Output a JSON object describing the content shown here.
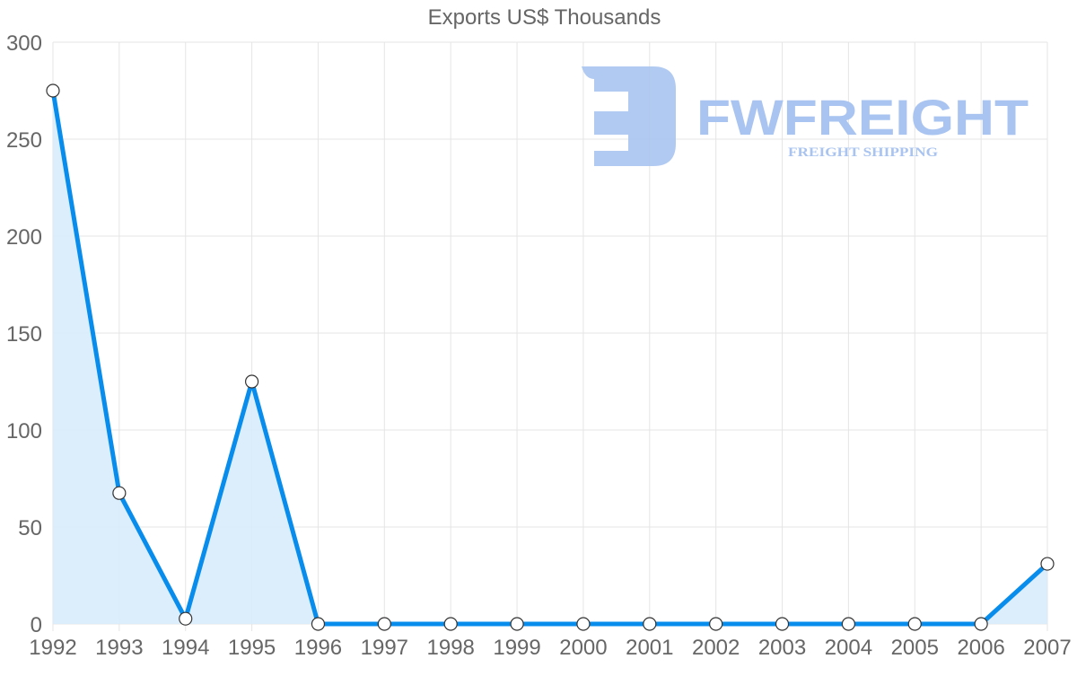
{
  "chart_data": {
    "type": "line",
    "title": "Exports US$ Thousands",
    "xlabel": "",
    "ylabel": "",
    "categories": [
      "1992",
      "1993",
      "1994",
      "1995",
      "1996",
      "1997",
      "1998",
      "1999",
      "2000",
      "2001",
      "2002",
      "2003",
      "2004",
      "2005",
      "2006",
      "2007"
    ],
    "series": [
      {
        "name": "Exports US$ Thousands",
        "values": [
          275,
          67.5,
          2.7,
          125,
          0,
          0,
          0,
          0,
          0,
          0,
          0,
          0,
          0,
          0,
          0,
          31
        ],
        "color": "#098ded",
        "fill": "#d8ecfc",
        "area": true
      }
    ],
    "ylim": [
      0,
      300
    ],
    "yticks": [
      0,
      50,
      100,
      150,
      200,
      250,
      300
    ],
    "grid": true,
    "legend": "none"
  },
  "watermark": {
    "brand": "FWFREIGHT",
    "tagline": "FREIGHT SHIPPING"
  },
  "colors": {
    "line": "#098ded",
    "fill": "#d8ecfc",
    "grid": "#e5e5e5",
    "text": "#666666",
    "watermark": "#a9c4f0"
  }
}
